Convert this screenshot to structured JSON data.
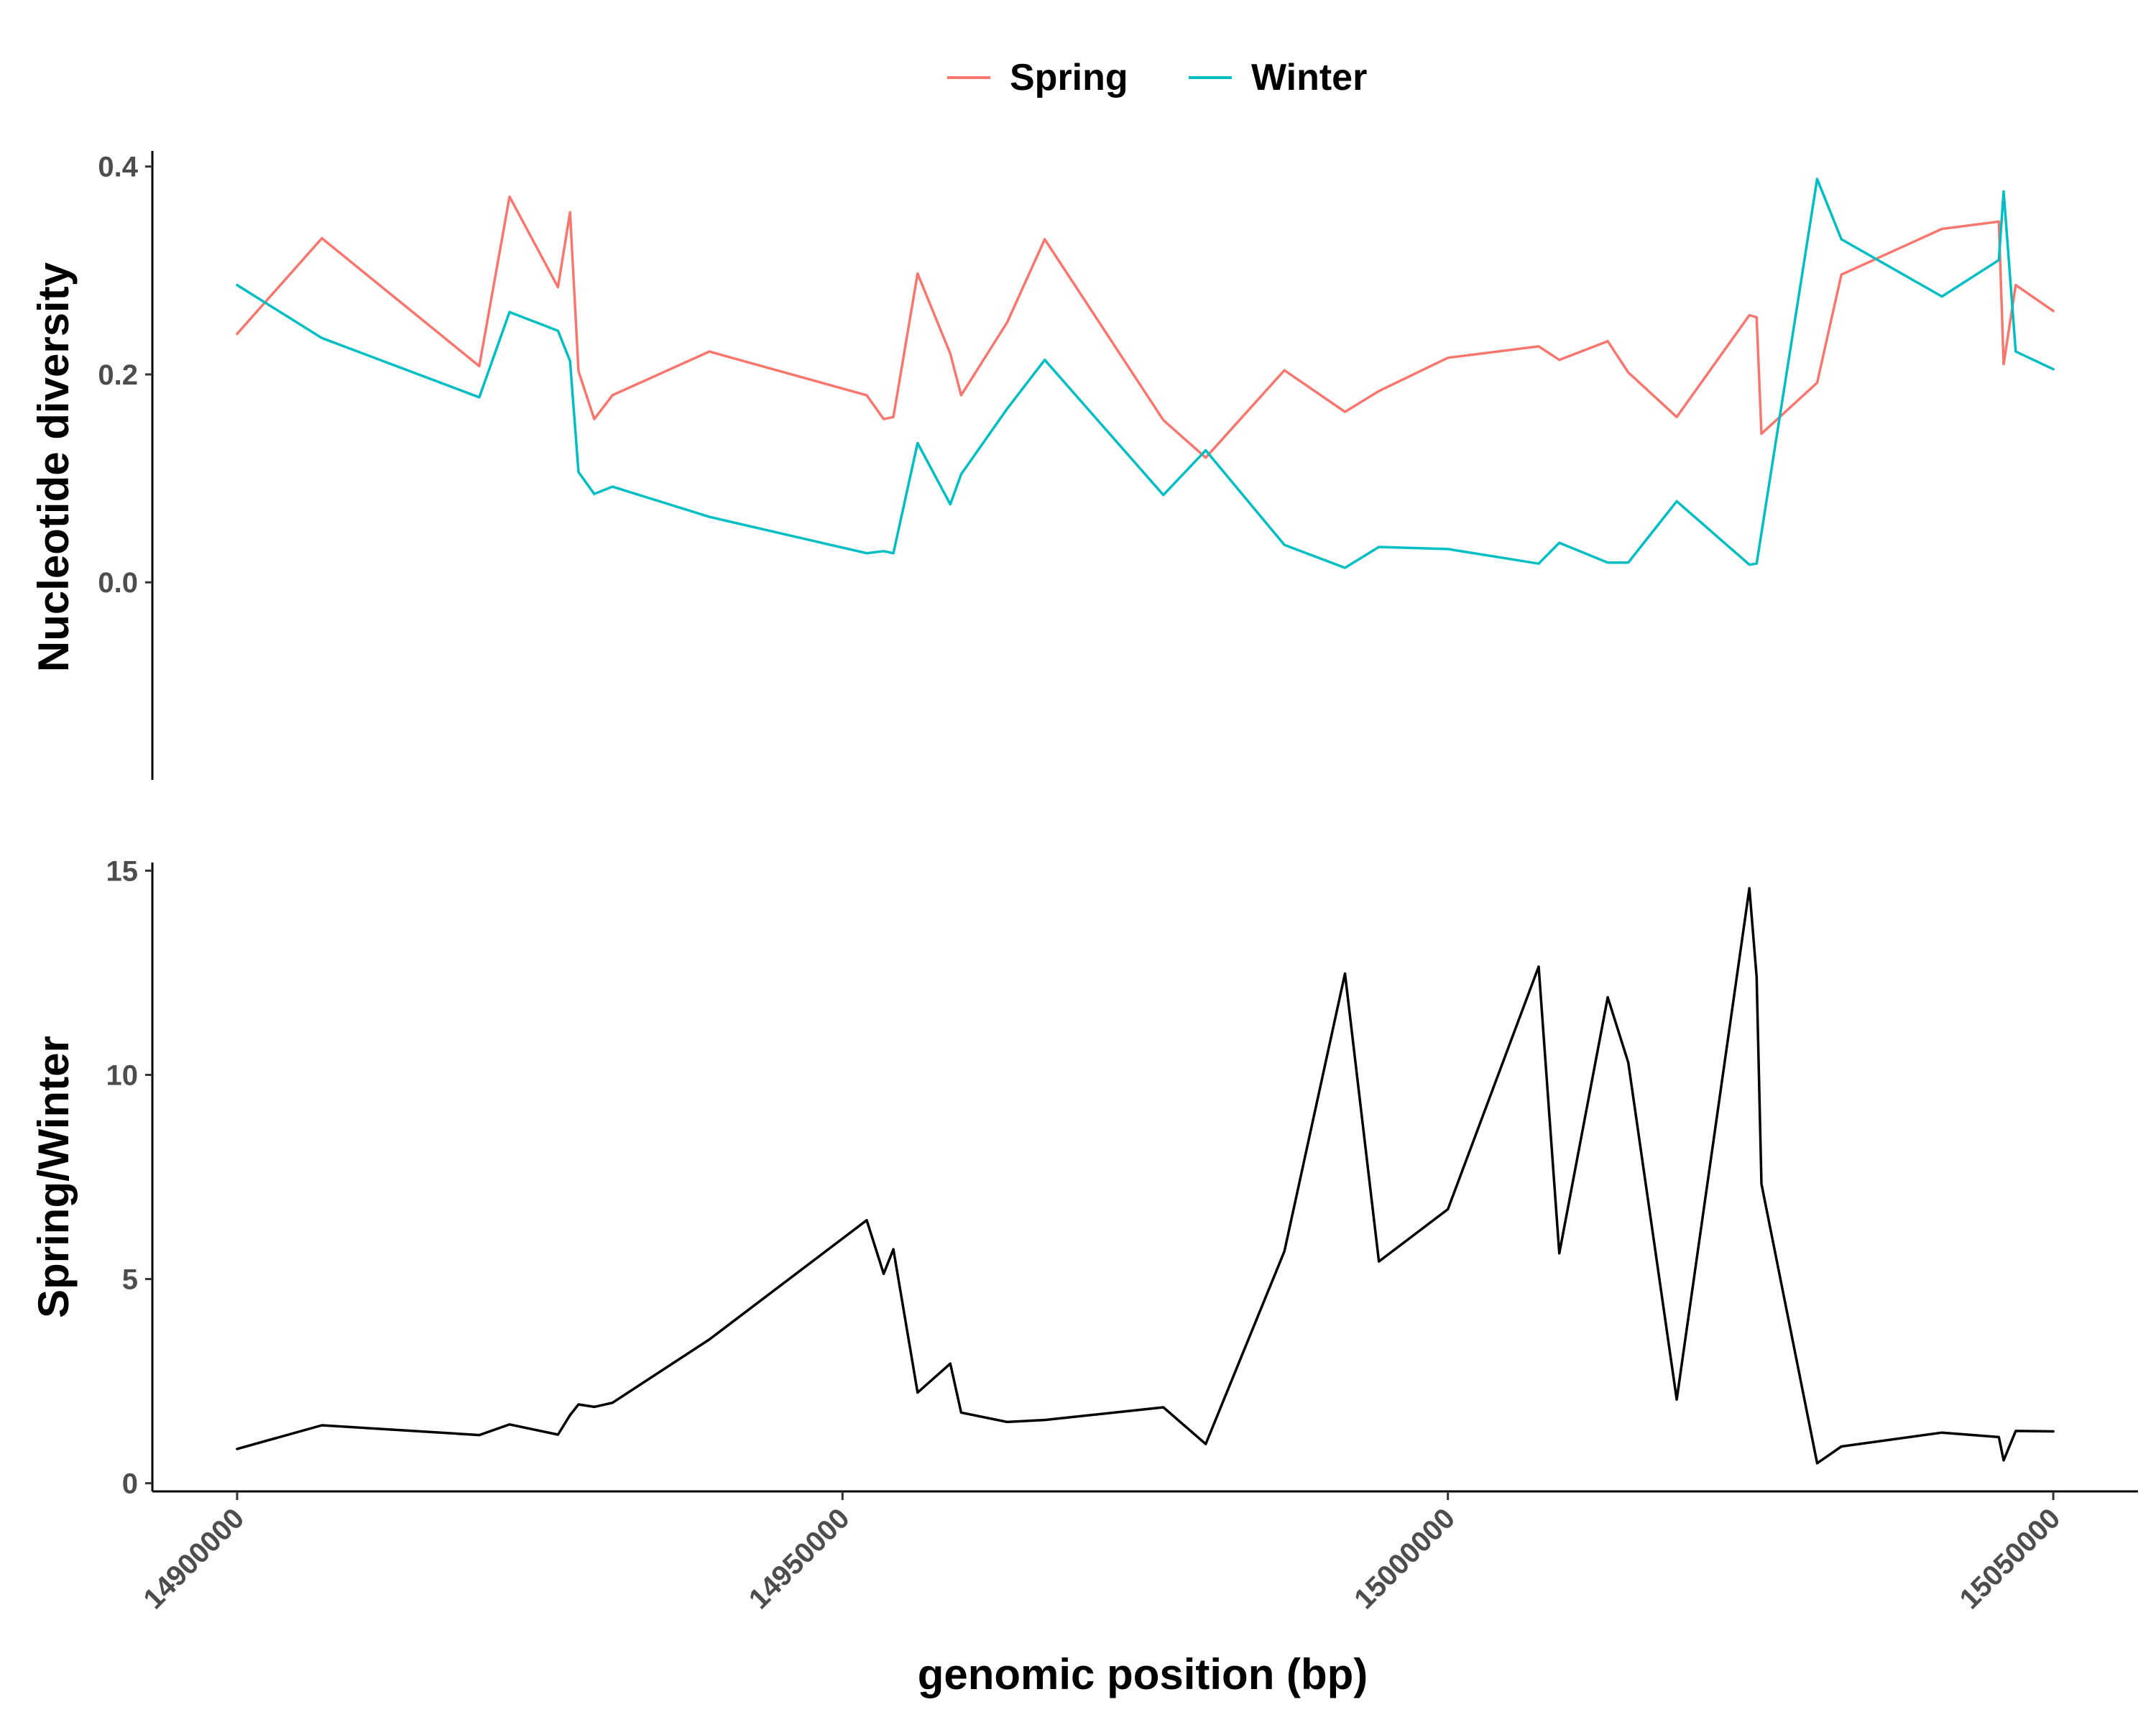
{
  "chart_data": [
    {
      "type": "line",
      "ylabel": "Nucleotide diversity",
      "ylim": [
        -0.19,
        0.415
      ],
      "yticks": [
        0.0,
        0.2,
        0.4
      ],
      "ytick_labels": [
        "0.0",
        "0.2",
        "0.4"
      ],
      "xlim": [
        14893000,
        15057000
      ],
      "legend": {
        "placement": "top-center",
        "entries": [
          "Spring",
          "Winter"
        ]
      },
      "grid": false,
      "colors": {
        "Spring": "#F8766D",
        "Winter": "#00BFC4"
      },
      "series": [
        {
          "name": "Spring",
          "x": [
            14900000,
            14907000,
            14920000,
            14922500,
            14926500,
            14927500,
            14928200,
            14929500,
            14931000,
            14939000,
            14952000,
            14953400,
            14954200,
            14956200,
            14958900,
            14959800,
            14963600,
            14966700,
            14976500,
            14980000,
            14986500,
            14991500,
            14994300,
            15000000,
            15007500,
            15009200,
            15013200,
            15014900,
            15018900,
            15024900,
            15025500,
            15025900,
            15030500,
            15032500,
            15040800,
            15045500,
            15045900,
            15046900,
            15050000
          ],
          "y": [
            0.239,
            0.331,
            0.208,
            0.371,
            0.284,
            0.356,
            0.203,
            0.157,
            0.18,
            0.222,
            0.18,
            0.157,
            0.159,
            0.297,
            0.22,
            0.18,
            0.25,
            0.33,
            0.156,
            0.12,
            0.204,
            0.164,
            0.184,
            0.216,
            0.227,
            0.214,
            0.232,
            0.202,
            0.159,
            0.257,
            0.255,
            0.143,
            0.192,
            0.296,
            0.34,
            0.347,
            0.21,
            0.286,
            0.261
          ]
        },
        {
          "name": "Winter",
          "x": [
            14900000,
            14907000,
            14920000,
            14922500,
            14926500,
            14927500,
            14928200,
            14929500,
            14931000,
            14939000,
            14952000,
            14953400,
            14954200,
            14956200,
            14958900,
            14959800,
            14963600,
            14966700,
            14976500,
            14980000,
            14986500,
            14991500,
            14994300,
            15000000,
            15007500,
            15009200,
            15013200,
            15014900,
            15018900,
            15024900,
            15025500,
            15030500,
            15032500,
            15040800,
            15045500,
            15045900,
            15046900,
            15050000
          ],
          "y": [
            0.286,
            0.235,
            0.178,
            0.26,
            0.242,
            0.213,
            0.106,
            0.085,
            0.092,
            0.063,
            0.028,
            0.03,
            0.028,
            0.134,
            0.075,
            0.104,
            0.167,
            0.214,
            0.084,
            0.127,
            0.036,
            0.014,
            0.034,
            0.032,
            0.018,
            0.038,
            0.019,
            0.019,
            0.078,
            0.017,
            0.018,
            0.388,
            0.33,
            0.275,
            0.31,
            0.376,
            0.222,
            0.205
          ]
        }
      ]
    },
    {
      "type": "line",
      "xlabel": "genomic position (bp)",
      "ylabel": "Spring/Winter",
      "ylim": [
        -0.2,
        15.2
      ],
      "yticks": [
        0,
        5,
        10,
        15
      ],
      "ytick_labels": [
        "0",
        "5",
        "10",
        "15"
      ],
      "xlim": [
        14893000,
        15057000
      ],
      "xticks": [
        14900000,
        14950000,
        15000000,
        15050000
      ],
      "xtick_labels": [
        "14900000",
        "14950000",
        "15000000",
        "15050000"
      ],
      "grid": false,
      "colors": {
        "ratio": "#000000"
      },
      "series": [
        {
          "x": [
            14900000,
            14907000,
            14920000,
            14922500,
            14926500,
            14927500,
            14928200,
            14929500,
            14931000,
            14939000,
            14952000,
            14953400,
            14954200,
            14956200,
            14958900,
            14959800,
            14963600,
            14966700,
            14976500,
            14980000,
            14986500,
            14991500,
            14994300,
            15000000,
            15007500,
            15009200,
            15013200,
            15014900,
            15018900,
            15024900,
            15025500,
            15025900,
            15030500,
            15032500,
            15040800,
            15045500,
            15045900,
            15046900,
            15050000
          ],
          "y": [
            0.84,
            1.42,
            1.18,
            1.44,
            1.19,
            1.67,
            1.93,
            1.87,
            1.97,
            3.52,
            6.44,
            5.13,
            5.73,
            2.22,
            2.93,
            1.73,
            1.5,
            1.55,
            1.86,
            0.96,
            5.68,
            12.48,
            5.43,
            6.71,
            12.65,
            5.63,
            11.9,
            10.3,
            2.05,
            14.57,
            12.4,
            7.33,
            0.49,
            0.9,
            1.24,
            1.13,
            0.56,
            1.28,
            1.27
          ]
        }
      ]
    }
  ]
}
